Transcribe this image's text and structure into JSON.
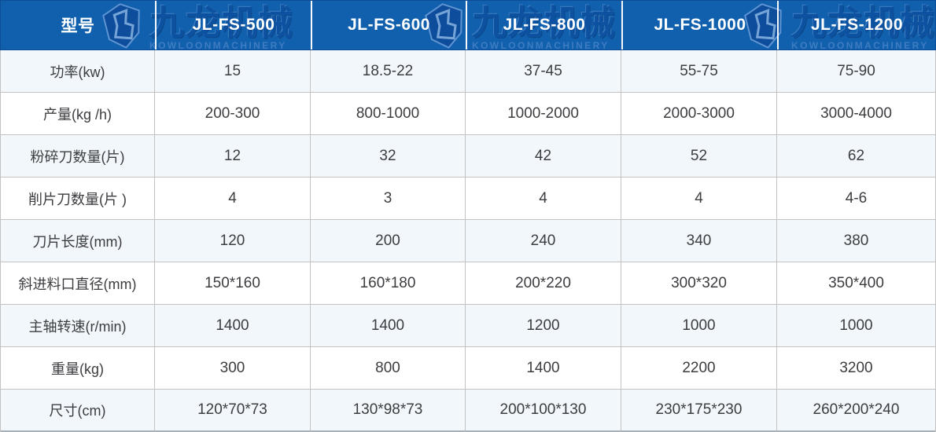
{
  "chart_data": {
    "type": "table",
    "columns": [
      "型号",
      "JL-FS-500",
      "JL-FS-600",
      "JL-FS-800",
      "JL-FS-1000",
      "JL-FS-1200"
    ],
    "rows": [
      [
        "功率(kw)",
        "15",
        "18.5-22",
        "37-45",
        "55-75",
        "75-90"
      ],
      [
        "产量(kg /h)",
        "200-300",
        "800-1000",
        "1000-2000",
        "2000-3000",
        "3000-4000"
      ],
      [
        "粉碎刀数量(片)",
        "12",
        "32",
        "42",
        "52",
        "62"
      ],
      [
        "削片刀数量(片 )",
        "4",
        "3",
        "4",
        "4",
        "4-6"
      ],
      [
        "刀片长度(mm)",
        "120",
        "200",
        "240",
        "340",
        "380"
      ],
      [
        "斜进料口直径(mm)",
        "150*160",
        "160*180",
        "200*220",
        "300*320",
        "350*400"
      ],
      [
        "主轴转速(r/min)",
        "1400",
        "1400",
        "1200",
        "1000",
        "1000"
      ],
      [
        "重量(kg)",
        "300",
        "800",
        "1400",
        "2200",
        "3200"
      ],
      [
        "尺寸(cm)",
        "120*70*73",
        "130*98*73",
        "200*100*130",
        "230*175*230",
        "260*200*240"
      ]
    ],
    "layout": {
      "header_position": "top",
      "alternating_rows": true,
      "grid": "full-borders"
    }
  },
  "watermark": {
    "cn": "九龙机械",
    "en": "KOWLOONMACHINERY"
  },
  "colors": {
    "header-bg": "#1160ae",
    "header-text": "#ffffff",
    "row-bg": "#ffffff",
    "row-alt-bg": "#f2f7fc",
    "border": "#c2c2c2",
    "cell-text": "#3c3d40",
    "watermark-cn": "#0d51a1",
    "watermark-en": "#3e7cc1"
  }
}
